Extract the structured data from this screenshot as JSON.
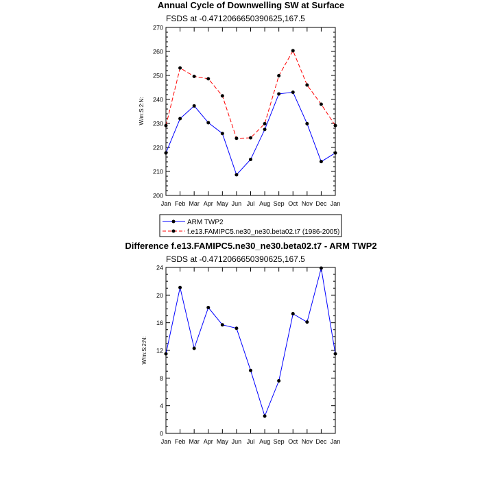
{
  "chart_data": [
    {
      "type": "line",
      "title": "Annual Cycle of Downwelling SW at Surface",
      "subtitle": "FSDS at -0.4712066650390625,167.5",
      "ylabel": "W/m:S:2:N:",
      "xlabel": "",
      "categories": [
        "Jan",
        "Feb",
        "Mar",
        "Apr",
        "May",
        "Jun",
        "Jul",
        "Aug",
        "Sep",
        "Oct",
        "Nov",
        "Dec",
        "Jan"
      ],
      "ylim": [
        200,
        270
      ],
      "yticks": [
        200,
        210,
        220,
        230,
        240,
        250,
        260,
        270
      ],
      "series": [
        {
          "name": "ARM TWP2",
          "color": "#0000ff",
          "dash": "solid",
          "values": [
            217.7,
            232.0,
            237.3,
            230.3,
            225.8,
            208.6,
            215.0,
            227.5,
            242.3,
            243.0,
            229.9,
            214.1,
            217.7
          ]
        },
        {
          "name": "f.e13.FAMIPC5.ne30_ne30.beta02.t7 (1986-2005)",
          "color": "#ff0000",
          "dash": "dashed",
          "values": [
            229.1,
            253.1,
            249.6,
            248.6,
            241.5,
            223.8,
            224.0,
            229.9,
            249.9,
            260.3,
            246.0,
            238.0,
            229.1
          ]
        }
      ],
      "legend": "below"
    },
    {
      "type": "line",
      "title": "Difference f.e13.FAMIPC5.ne30_ne30.beta02.t7 - ARM TWP2",
      "subtitle": "FSDS at -0.4712066650390625,167.5",
      "ylabel": "W/m:S:2:N:",
      "xlabel": "",
      "categories": [
        "Jan",
        "Feb",
        "Mar",
        "Apr",
        "May",
        "Jun",
        "Jul",
        "Aug",
        "Sep",
        "Oct",
        "Nov",
        "Dec",
        "Jan"
      ],
      "ylim": [
        0,
        24
      ],
      "yticks": [
        0,
        4,
        8,
        12,
        16,
        20,
        24
      ],
      "series": [
        {
          "color": "#0000ff",
          "dash": "solid",
          "values": [
            11.5,
            21.1,
            12.3,
            18.2,
            15.7,
            15.2,
            9.1,
            2.5,
            7.6,
            17.3,
            16.1,
            23.9,
            11.5
          ]
        }
      ]
    }
  ]
}
